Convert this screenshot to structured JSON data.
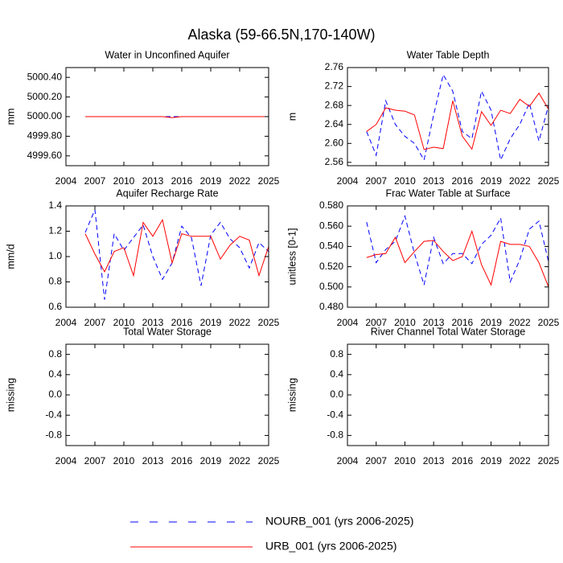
{
  "title": "Alaska (59-66.5N,170-140W)",
  "chart_data": [
    {
      "type": "line",
      "title": "Water in Unconfined Aquifer",
      "ylabel": "mm",
      "x": [
        2006,
        2007,
        2008,
        2009,
        2010,
        2011,
        2012,
        2013,
        2014,
        2015,
        2016,
        2017,
        2018,
        2019,
        2020,
        2021,
        2022,
        2023,
        2024,
        2025
      ],
      "xlim": [
        2004,
        2025
      ],
      "xticks": [
        2004,
        2007,
        2010,
        2013,
        2016,
        2019,
        2022,
        2025
      ],
      "ylim": [
        4999.5,
        5000.5
      ],
      "yticks": [
        {
          "value": 4999.6,
          "label": "4999.60"
        },
        {
          "value": 4999.8,
          "label": "4999.80"
        },
        {
          "value": 5000,
          "label": "5000.00"
        },
        {
          "value": 5000.2,
          "label": "5000.20"
        },
        {
          "value": 5000.4,
          "label": "5000.40"
        }
      ],
      "series": [
        {
          "name": "NOURB_001 (yrs 2006-2025)",
          "color": "#0000ff",
          "linestyle": "dashed",
          "values": [
            5000,
            5000,
            5000,
            5000,
            5000,
            5000,
            5000,
            5000,
            5000,
            5000,
            5000,
            5000,
            5000,
            5000,
            5000,
            5000,
            5000,
            5000,
            5000,
            5000
          ]
        },
        {
          "name": "URB_001 (yrs 2006-2025)",
          "color": "#ff0000",
          "linestyle": "solid",
          "values": [
            5000,
            5000,
            5000,
            5000,
            5000,
            5000,
            5000,
            5000,
            5000,
            4999.99,
            5000,
            5000,
            5000,
            5000,
            5000,
            5000,
            5000,
            5000,
            5000,
            5000
          ]
        }
      ]
    },
    {
      "type": "line",
      "title": "Water Table Depth",
      "ylabel": "m",
      "x": [
        2006,
        2007,
        2008,
        2009,
        2010,
        2011,
        2012,
        2013,
        2014,
        2015,
        2016,
        2017,
        2018,
        2019,
        2020,
        2021,
        2022,
        2023,
        2024,
        2025
      ],
      "xlim": [
        2004,
        2025
      ],
      "xticks": [
        2004,
        2007,
        2010,
        2013,
        2016,
        2019,
        2022,
        2025
      ],
      "ylim": [
        2.553,
        2.76
      ],
      "yticks": [
        2.56,
        {
          "value": 2.6,
          "label": "2.60"
        },
        2.64,
        2.68,
        2.72,
        2.76
      ],
      "series": [
        {
          "name": "NOURB_001 (yrs 2006-2025)",
          "color": "#0000ff",
          "linestyle": "dashed",
          "values": [
            2.625,
            2.575,
            2.69,
            2.64,
            2.615,
            2.6,
            2.565,
            2.66,
            2.745,
            2.71,
            2.625,
            2.61,
            2.71,
            2.67,
            2.565,
            2.61,
            2.64,
            2.685,
            2.605,
            2.68
          ]
        },
        {
          "name": "URB_001 (yrs 2006-2025)",
          "color": "#ff0000",
          "linestyle": "solid",
          "values": [
            2.625,
            2.64,
            2.675,
            2.67,
            2.668,
            2.66,
            2.587,
            2.592,
            2.589,
            2.69,
            2.615,
            2.588,
            2.667,
            2.638,
            2.67,
            2.663,
            2.693,
            2.678,
            2.706,
            2.672
          ]
        }
      ]
    },
    {
      "type": "line",
      "title": "Aquifer Recharge Rate",
      "ylabel": "mm/d",
      "x": [
        2006,
        2007,
        2008,
        2009,
        2010,
        2011,
        2012,
        2013,
        2014,
        2015,
        2016,
        2017,
        2018,
        2019,
        2020,
        2021,
        2022,
        2023,
        2024,
        2025
      ],
      "xlim": [
        2004,
        2025
      ],
      "xticks": [
        2004,
        2007,
        2010,
        2013,
        2016,
        2019,
        2022,
        2025
      ],
      "ylim": [
        0.6,
        1.4
      ],
      "yticks": [
        0.6,
        0.8,
        {
          "value": 1,
          "label": "1.0"
        },
        1.2,
        1.4
      ],
      "series": [
        {
          "name": "NOURB_001 (yrs 2006-2025)",
          "color": "#0000ff",
          "linestyle": "dashed",
          "values": [
            1.19,
            1.37,
            0.66,
            1.18,
            1.05,
            1.15,
            1.25,
            1.0,
            0.82,
            0.95,
            1.24,
            1.15,
            0.77,
            1.17,
            1.27,
            1.14,
            1.07,
            0.91,
            1.11,
            1.04
          ]
        },
        {
          "name": "URB_001 (yrs 2006-2025)",
          "color": "#ff0000",
          "linestyle": "solid",
          "values": [
            1.18,
            1.02,
            0.88,
            1.04,
            1.07,
            0.85,
            1.27,
            1.16,
            1.29,
            0.95,
            1.18,
            1.16,
            1.16,
            1.16,
            0.98,
            1.09,
            1.16,
            1.13,
            0.85,
            1.08
          ]
        }
      ]
    },
    {
      "type": "line",
      "title": "Frac Water Table at Surface",
      "ylabel": "unitless [0-1]",
      "x": [
        2006,
        2007,
        2008,
        2009,
        2010,
        2011,
        2012,
        2013,
        2014,
        2015,
        2016,
        2017,
        2018,
        2019,
        2020,
        2021,
        2022,
        2023,
        2024,
        2025
      ],
      "xlim": [
        2004,
        2025
      ],
      "xticks": [
        2004,
        2007,
        2010,
        2013,
        2016,
        2019,
        2022,
        2025
      ],
      "ylim": [
        0.48,
        0.58
      ],
      "yticks": [
        {
          "value": 0.48,
          "label": "0.480"
        },
        {
          "value": 0.5,
          "label": "0.500"
        },
        {
          "value": 0.52,
          "label": "0.520"
        },
        {
          "value": 0.54,
          "label": "0.540"
        },
        {
          "value": 0.56,
          "label": "0.560"
        },
        {
          "value": 0.58,
          "label": "0.580"
        }
      ],
      "series": [
        {
          "name": "NOURB_001 (yrs 2006-2025)",
          "color": "#0000ff",
          "linestyle": "dashed",
          "values": [
            0.564,
            0.524,
            0.537,
            0.545,
            0.57,
            0.533,
            0.502,
            0.549,
            0.523,
            0.533,
            0.533,
            0.523,
            0.542,
            0.551,
            0.568,
            0.505,
            0.527,
            0.557,
            0.565,
            0.525
          ]
        },
        {
          "name": "URB_001 (yrs 2006-2025)",
          "color": "#ff0000",
          "linestyle": "solid",
          "values": [
            0.529,
            0.532,
            0.533,
            0.549,
            0.524,
            0.535,
            0.545,
            0.546,
            0.535,
            0.526,
            0.53,
            0.555,
            0.522,
            0.502,
            0.545,
            0.542,
            0.542,
            0.54,
            0.524,
            0.5
          ]
        }
      ]
    },
    {
      "type": "line",
      "title": "Total Water Storage",
      "ylabel": "missing",
      "xlim": [
        2004,
        2025
      ],
      "xticks": [
        2004,
        2007,
        2010,
        2013,
        2016,
        2019,
        2022,
        2025
      ],
      "ylim": [
        -1,
        1
      ],
      "yticks": [
        -0.8,
        -0.4,
        {
          "value": 0,
          "label": "0.0"
        },
        0.4,
        0.8
      ]
    },
    {
      "type": "line",
      "title": "River Channel Total Water Storage",
      "ylabel": "missing",
      "xlim": [
        2004,
        2025
      ],
      "xticks": [
        2004,
        2007,
        2010,
        2013,
        2016,
        2019,
        2022,
        2025
      ],
      "ylim": [
        -1,
        1
      ],
      "yticks": [
        -0.8,
        -0.4,
        {
          "value": 0,
          "label": "0.0"
        },
        0.4,
        0.8
      ]
    }
  ]
}
